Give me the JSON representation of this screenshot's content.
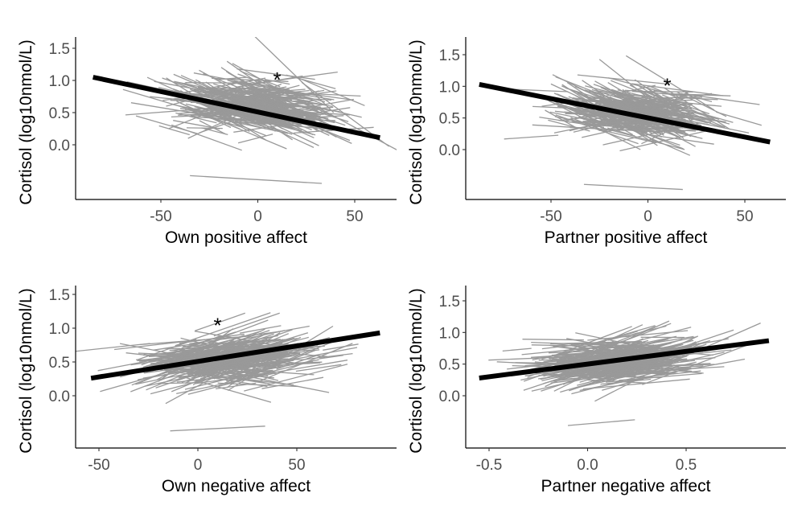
{
  "chart_data": [
    {
      "type": "line",
      "panel": "top-left",
      "xlabel": "Own positive affect",
      "ylabel": "Cortisol (log10nmol/L)",
      "xticks": [
        -50,
        0,
        50
      ],
      "xtick_labels": [
        "-50",
        "0",
        "50"
      ],
      "yticks": [
        0.0,
        0.5,
        1.0,
        1.5
      ],
      "ytick_labels": [
        "0.0",
        "0.5",
        "1.0",
        "1.5"
      ],
      "xlim": [
        -88,
        70
      ],
      "ylim": [
        -0.78,
        1.65
      ],
      "fit_line": {
        "x": [
          -85,
          63
        ],
        "y": [
          1.05,
          0.11
        ]
      },
      "individual_lines": {
        "count": 300,
        "center_x": -2,
        "center_y": 0.6,
        "spread_x": 38,
        "spread_y": 0.32,
        "slope_mean": -0.006,
        "color": "#999999"
      },
      "outlier_line": {
        "x": [
          -35,
          33
        ],
        "y": [
          -0.48,
          -0.6
        ]
      },
      "annotation": {
        "text": "*",
        "x": 10,
        "y": 1.05
      },
      "fit_color": "#000000"
    },
    {
      "type": "line",
      "panel": "top-right",
      "xlabel": "Partner positive affect",
      "ylabel": "Cortisol (log10nmol/L)",
      "xticks": [
        -50,
        0,
        50
      ],
      "xtick_labels": [
        "-50",
        "0",
        "50"
      ],
      "yticks": [
        0.0,
        0.5,
        1.0,
        1.5
      ],
      "ytick_labels": [
        "0.0",
        "0.5",
        "1.0",
        "1.5"
      ],
      "xlim": [
        -93,
        71
      ],
      "ylim": [
        -0.78,
        1.75
      ],
      "fit_line": {
        "x": [
          -87,
          63
        ],
        "y": [
          1.03,
          0.12
        ]
      },
      "individual_lines": {
        "count": 300,
        "center_x": -6,
        "center_y": 0.58,
        "spread_x": 36,
        "spread_y": 0.32,
        "slope_mean": -0.0065,
        "color": "#999999"
      },
      "outlier_line": {
        "x": [
          -33,
          18
        ],
        "y": [
          -0.55,
          -0.63
        ]
      },
      "annotation": {
        "text": "*",
        "x": 10,
        "y": 1.05
      },
      "fit_color": "#000000"
    },
    {
      "type": "line",
      "panel": "bottom-left",
      "xlabel": "Own negative affect",
      "ylabel": "Cortisol (log10nmol/L)",
      "xticks": [
        -50,
        0,
        50
      ],
      "xtick_labels": [
        "-50",
        "0",
        "50"
      ],
      "yticks": [
        0.0,
        0.5,
        1.0,
        1.5
      ],
      "ytick_labels": [
        "0.0",
        "0.5",
        "1.0",
        "1.5"
      ],
      "xlim": [
        -62,
        100
      ],
      "ylim": [
        -0.78,
        1.65
      ],
      "fit_line": {
        "x": [
          -54,
          92
        ],
        "y": [
          0.26,
          0.93
        ]
      },
      "individual_lines": {
        "count": 300,
        "center_x": 15,
        "center_y": 0.55,
        "spread_x": 40,
        "spread_y": 0.3,
        "slope_mean": 0.005,
        "color": "#999999"
      },
      "outlier_line": {
        "x": [
          -14,
          34
        ],
        "y": [
          -0.52,
          -0.45
        ]
      },
      "annotation": {
        "text": "*",
        "x": 10,
        "y": 1.08
      },
      "fit_color": "#000000"
    },
    {
      "type": "line",
      "panel": "bottom-right",
      "xlabel": "Partner negative affect",
      "ylabel": "Cortisol (log10nmol/L)",
      "xticks": [
        -0.5,
        0.0,
        0.5
      ],
      "xtick_labels": [
        "-0.5",
        "0.0",
        "0.5"
      ],
      "yticks": [
        0.0,
        0.5,
        1.0,
        1.5
      ],
      "ytick_labels": [
        "0.0",
        "0.5",
        "1.0",
        "1.5"
      ],
      "xlim": [
        -0.62,
        1.0
      ],
      "ylim": [
        -0.83,
        1.75
      ],
      "fit_line": {
        "x": [
          -0.55,
          0.92
        ],
        "y": [
          0.28,
          0.87
        ]
      },
      "individual_lines": {
        "count": 300,
        "center_x": 0.15,
        "center_y": 0.55,
        "spread_x": 0.4,
        "spread_y": 0.3,
        "slope_mean": 0.45,
        "color": "#999999"
      },
      "outlier_line": {
        "x": [
          -0.1,
          0.24
        ],
        "y": [
          -0.47,
          -0.38
        ]
      },
      "annotation": null,
      "fit_color": "#000000"
    }
  ]
}
